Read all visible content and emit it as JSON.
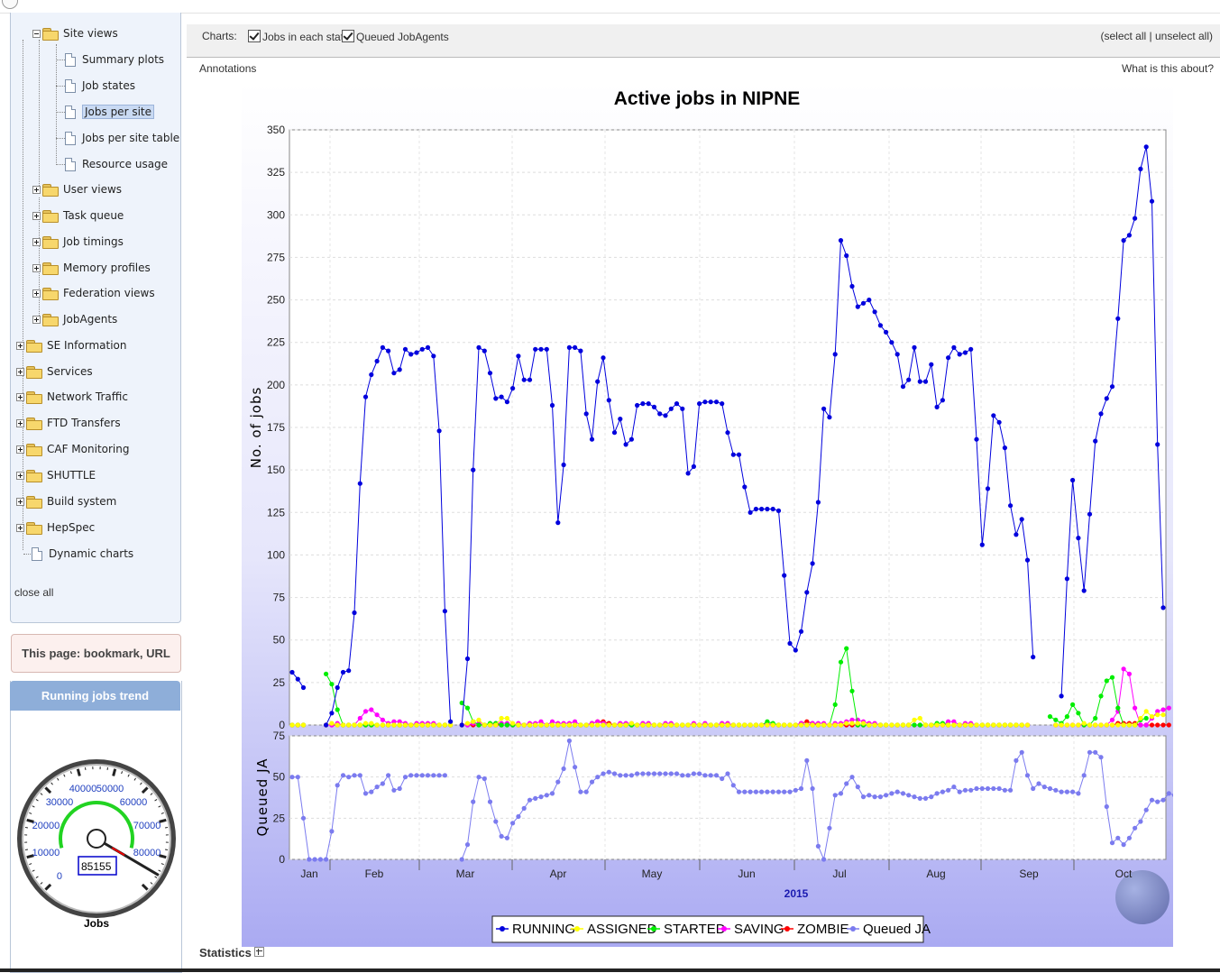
{
  "tree": {
    "site_views": "Site views",
    "summary_plots": "Summary plots",
    "job_states": "Job states",
    "jobs_per_site": "Jobs per site",
    "jobs_per_site_table": "Jobs per site table",
    "resource_usage": "Resource usage",
    "user_views": "User views",
    "task_queue": "Task queue",
    "job_timings": "Job timings",
    "memory_profiles": "Memory profiles",
    "federation_views": "Federation views",
    "jobagents": "JobAgents",
    "se_information": "SE Information",
    "services": "Services",
    "network_traffic": "Network Traffic",
    "ftd_transfers": "FTD Transfers",
    "caf_monitoring": "CAF Monitoring",
    "shuttle": "SHUTTLE",
    "build_system": "Build system",
    "hepspec": "HepSpec",
    "dynamic_charts": "Dynamic charts",
    "close_all": "close all"
  },
  "bookmark": "This page: bookmark, URL",
  "trend": {
    "title": "Running jobs trend",
    "gauge_labels": [
      "0",
      "10000",
      "20000",
      "30000",
      "40000",
      "50000",
      "60000",
      "70000",
      "80000"
    ],
    "value_text": "85155",
    "value": 85155,
    "unit": "Jobs"
  },
  "header": {
    "charts_label": "Charts:",
    "opt_jobs_state": "Jobs in each state",
    "opt_queued": "Queued JobAgents",
    "select_all": "(select all | unselect all)",
    "annotations": "Annotations",
    "what_is_this": "What is this about?"
  },
  "statistics": "Statistics",
  "colors": {
    "running": "#0000dd",
    "assigned": "#ffff00",
    "started": "#00ee00",
    "saving": "#ff00ff",
    "zombie": "#ff0000",
    "queued": "#7b7bef"
  },
  "chart_data": [
    {
      "type": "line",
      "title": "Active jobs in NIPNE",
      "ylabel": "No. of jobs",
      "xlabel": "2015",
      "ylim": [
        0,
        350
      ],
      "yticks": [
        0,
        25,
        50,
        75,
        100,
        125,
        150,
        175,
        200,
        225,
        250,
        275,
        300,
        325,
        350
      ],
      "months": [
        "Jan",
        "Feb",
        "Mar",
        "Apr",
        "May",
        "Jun",
        "Jul",
        "Aug",
        "Sep",
        "Oct"
      ],
      "legend": [
        "RUNNING",
        "ASSIGNED",
        "STARTED",
        "SAVING",
        "ZOMBIE",
        "Queued JA"
      ],
      "series": [
        {
          "name": "RUNNING",
          "color": "#0000dd",
          "values": [
            31,
            27,
            22,
            null,
            null,
            null,
            0,
            7,
            22,
            31,
            32,
            66,
            142,
            193,
            206,
            214,
            222,
            220,
            207,
            209,
            221,
            218,
            219,
            221,
            222,
            217,
            173,
            67,
            2,
            null,
            0,
            39,
            150,
            222,
            220,
            207,
            192,
            193,
            190,
            198,
            217,
            203,
            203,
            221,
            221,
            221,
            188,
            119,
            153,
            222,
            222,
            220,
            183,
            168,
            202,
            216,
            191,
            172,
            180,
            165,
            168,
            188,
            189,
            189,
            187,
            183,
            182,
            186,
            189,
            186,
            148,
            152,
            189,
            190,
            190,
            190,
            189,
            172,
            159,
            159,
            140,
            125,
            127,
            127,
            127,
            127,
            126,
            88,
            48,
            44,
            55,
            78,
            95,
            131,
            186,
            181,
            218,
            285,
            276,
            258,
            246,
            248,
            250,
            243,
            235,
            231,
            225,
            218,
            199,
            203,
            222,
            202,
            202,
            212,
            187,
            191,
            216,
            222,
            218,
            219,
            221,
            168,
            106,
            139,
            182,
            178,
            163,
            129,
            112,
            121,
            97,
            40,
            null,
            null,
            null,
            null,
            17,
            86,
            144,
            110,
            79,
            124,
            167,
            183,
            192,
            199,
            239,
            285,
            288,
            298,
            327,
            340,
            308,
            165,
            69
          ]
        },
        {
          "name": "ASSIGNED",
          "color": "#ffff00",
          "values": [
            0,
            0,
            0,
            null,
            null,
            null,
            0,
            1,
            0,
            0,
            0,
            0,
            0,
            1,
            1,
            0,
            0,
            0,
            0,
            0,
            0,
            0,
            0,
            0,
            0,
            0,
            0,
            0,
            0,
            null,
            0,
            1,
            2,
            3,
            0,
            0,
            0,
            4,
            4,
            1,
            0,
            0,
            0,
            0,
            0,
            0,
            0,
            0,
            0,
            0,
            0,
            0,
            0,
            0,
            0,
            0,
            0,
            0,
            0,
            0,
            1,
            0,
            0,
            0,
            0,
            0,
            0,
            0,
            0,
            0,
            0,
            0,
            0,
            0,
            0,
            0,
            0,
            0,
            0,
            0,
            0,
            0,
            0,
            0,
            0,
            0,
            0,
            0,
            0,
            0,
            0,
            0,
            0,
            0,
            0,
            0,
            0,
            0,
            1,
            1,
            1,
            1,
            0,
            0,
            0,
            0,
            0,
            0,
            0,
            0,
            3,
            4,
            0,
            0,
            0,
            0,
            0,
            0,
            0,
            0,
            0,
            0,
            0,
            0,
            0,
            0,
            0,
            0,
            0,
            0,
            0,
            null,
            null,
            null,
            null,
            0,
            0,
            0,
            0,
            0,
            1,
            0,
            0,
            0,
            0,
            0,
            0,
            0,
            0,
            0,
            4,
            8,
            5,
            6,
            6
          ]
        },
        {
          "name": "STARTED",
          "color": "#00ee00",
          "values": [
            0,
            0,
            0,
            null,
            null,
            null,
            30,
            24,
            9,
            0,
            0,
            0,
            0,
            0,
            0,
            0,
            0,
            0,
            0,
            0,
            0,
            0,
            0,
            0,
            0,
            0,
            0,
            0,
            0,
            null,
            13,
            10,
            2,
            0,
            0,
            1,
            1,
            0,
            0,
            0,
            0,
            0,
            0,
            0,
            0,
            0,
            0,
            0,
            0,
            0,
            0,
            0,
            0,
            0,
            0,
            0,
            0,
            0,
            0,
            0,
            0,
            0,
            0,
            0,
            0,
            0,
            0,
            0,
            0,
            0,
            0,
            0,
            0,
            0,
            0,
            0,
            0,
            0,
            0,
            0,
            0,
            0,
            0,
            0,
            2,
            1,
            0,
            0,
            0,
            0,
            0,
            0,
            0,
            0,
            0,
            0,
            12,
            37,
            45,
            20,
            0,
            0,
            0,
            0,
            0,
            0,
            0,
            0,
            0,
            0,
            0,
            0,
            0,
            0,
            1,
            1,
            0,
            0,
            0,
            0,
            0,
            0,
            0,
            0,
            0,
            0,
            0,
            0,
            0,
            0,
            null,
            null,
            null,
            null,
            5,
            3,
            1,
            5,
            12,
            7,
            0,
            0,
            4,
            17,
            26,
            28,
            10,
            0,
            0,
            0,
            3,
            4
          ]
        },
        {
          "name": "SAVING",
          "color": "#ff00ff",
          "values": [
            0,
            0,
            0,
            null,
            null,
            null,
            0,
            0,
            1,
            0,
            0,
            0,
            4,
            8,
            9,
            6,
            3,
            1,
            2,
            2,
            1,
            0,
            1,
            1,
            1,
            1,
            0,
            0,
            0,
            null,
            0,
            0,
            1,
            1,
            0,
            0,
            1,
            1,
            1,
            0,
            1,
            0,
            1,
            1,
            2,
            0,
            2,
            1,
            1,
            1,
            2,
            0,
            0,
            1,
            2,
            1,
            0,
            0,
            1,
            1,
            1,
            0,
            1,
            1,
            0,
            0,
            1,
            1,
            0,
            0,
            0,
            1,
            0,
            1,
            0,
            0,
            1,
            1,
            0,
            0,
            0,
            0,
            0,
            0,
            1,
            0,
            0,
            0,
            0,
            0,
            1,
            0,
            1,
            1,
            1,
            0,
            1,
            1,
            2,
            3,
            3,
            2,
            1,
            1,
            0,
            0,
            0,
            0,
            0,
            0,
            0,
            0,
            0,
            0,
            0,
            0,
            2,
            2,
            0,
            1,
            1,
            0,
            0,
            0,
            0,
            0,
            0,
            0,
            0,
            0,
            0,
            null,
            null,
            null,
            null,
            0,
            0,
            0,
            0,
            0,
            0,
            0,
            0,
            0,
            0,
            3,
            8,
            33,
            30,
            10,
            0,
            0,
            4,
            8,
            9,
            10
          ]
        },
        {
          "name": "ZOMBIE",
          "color": "#ff0000",
          "values": [
            0,
            0,
            0,
            null,
            null,
            null,
            0,
            0,
            0,
            0,
            0,
            0,
            0,
            0,
            0,
            0,
            0,
            0,
            0,
            0,
            0,
            0,
            0,
            0,
            0,
            0,
            0,
            0,
            0,
            null,
            0,
            0,
            0,
            0,
            0,
            0,
            0,
            0,
            0,
            0,
            0,
            0,
            0,
            0,
            0,
            0,
            0,
            0,
            0,
            0,
            0,
            0,
            0,
            1,
            2,
            2,
            1,
            0,
            0,
            0,
            0,
            0,
            0,
            0,
            0,
            0,
            0,
            0,
            0,
            0,
            0,
            0,
            0,
            0,
            0,
            0,
            0,
            0,
            0,
            0,
            0,
            0,
            0,
            0,
            0,
            0,
            0,
            0,
            0,
            0,
            1,
            2,
            1,
            0,
            0,
            0,
            0,
            0,
            0,
            0,
            0,
            0,
            0,
            0,
            0,
            0,
            0,
            0,
            0,
            0,
            0,
            0,
            0,
            0,
            0,
            0,
            0,
            0,
            0,
            0,
            0,
            0,
            0,
            0,
            0,
            0,
            0,
            0,
            0,
            0,
            0,
            null,
            null,
            null,
            null,
            0,
            0,
            0,
            0,
            0,
            0,
            0,
            0,
            0,
            0,
            0,
            1,
            1,
            1,
            1,
            0,
            0,
            0,
            0,
            0,
            0
          ]
        }
      ]
    },
    {
      "type": "line",
      "ylabel": "Queued JA",
      "ylim": [
        0,
        75
      ],
      "yticks": [
        0,
        25,
        50,
        75
      ],
      "series": [
        {
          "name": "Queued JA",
          "color": "#7b7bef",
          "values": [
            50,
            50,
            25,
            0,
            0,
            0,
            0,
            17,
            45,
            51,
            50,
            51,
            51,
            40,
            41,
            44,
            46,
            51,
            42,
            43,
            50,
            51,
            51,
            51,
            51,
            51,
            51,
            51,
            null,
            null,
            0,
            9,
            35,
            50,
            49,
            35,
            23,
            14,
            13,
            22,
            26,
            31,
            36,
            37,
            38,
            39,
            40,
            47,
            55,
            72,
            56,
            41,
            41,
            47,
            50,
            52,
            53,
            52,
            51,
            51,
            51,
            52,
            52,
            52,
            52,
            52,
            52,
            52,
            52,
            51,
            51,
            52,
            52,
            51,
            51,
            51,
            49,
            52,
            45,
            41,
            41,
            41,
            41,
            41,
            41,
            41,
            41,
            41,
            41,
            42,
            43,
            60,
            43,
            8,
            0,
            19,
            39,
            40,
            46,
            50,
            44,
            38,
            39,
            38,
            38,
            39,
            40,
            41,
            40,
            39,
            38,
            37,
            37,
            38,
            40,
            41,
            42,
            44,
            41,
            42,
            42,
            43,
            43,
            43,
            43,
            43,
            42,
            42,
            60,
            65,
            51,
            43,
            46,
            44,
            43,
            42,
            41,
            41,
            41,
            40,
            51,
            65,
            65,
            62,
            32,
            10,
            13,
            9,
            13,
            19,
            23,
            30,
            36,
            35,
            36,
            40,
            39,
            30,
            25,
            21,
            19,
            26,
            34
          ]
        }
      ]
    }
  ]
}
